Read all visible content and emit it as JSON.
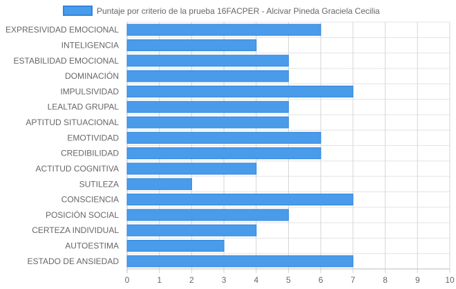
{
  "chart_data": {
    "type": "bar",
    "orientation": "horizontal",
    "legend_position": "top",
    "grid": true,
    "xlim": [
      0,
      10
    ],
    "x_ticks": [
      0,
      1,
      2,
      3,
      4,
      5,
      6,
      7,
      8,
      9,
      10
    ],
    "categories": [
      "EXPRESIVIDAD EMOCIONAL",
      "INTELIGENCIA",
      "ESTABILIDAD EMOCIONAL",
      "DOMINACIÓN",
      "IMPULSIVIDAD",
      "LEALTAD GRUPAL",
      "APTITUD SITUACIONAL",
      "EMOTIVIDAD",
      "CREDIBILIDAD",
      "ACTITUD COGNITIVA",
      "SUTILEZA",
      "CONSCIENCIA",
      "POSICIÓN SOCIAL",
      "CERTEZA INDIVIDUAL",
      "AUTOESTIMA",
      "ESTADO DE ANSIEDAD"
    ],
    "series": [
      {
        "name": "Puntaje por criterio de la prueba 16FACPER - Alcivar Pineda Graciela Cecilia",
        "color": "#4a9bea",
        "border_color": "#2e86de",
        "values": [
          6,
          4,
          5,
          5,
          7,
          5,
          5,
          6,
          6,
          4,
          2,
          7,
          5,
          4,
          3,
          7
        ]
      }
    ]
  }
}
